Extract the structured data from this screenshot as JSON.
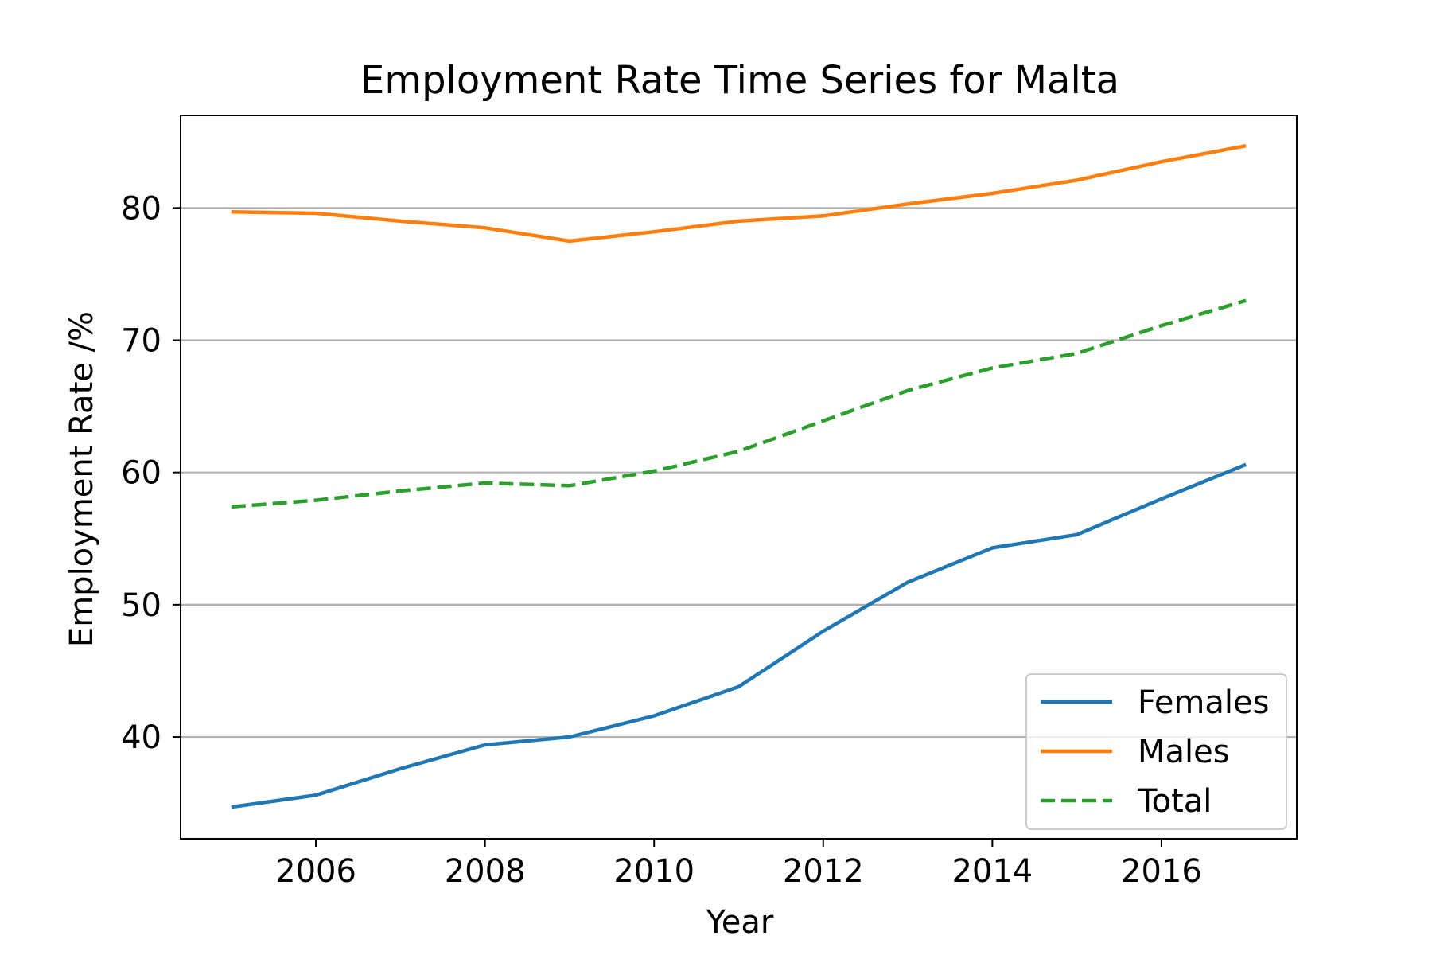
{
  "chart_data": {
    "type": "line",
    "title": "Employment Rate Time Series for Malta",
    "xlabel": "Year",
    "ylabel": "Employment Rate /%",
    "x": [
      2005,
      2006,
      2007,
      2008,
      2009,
      2010,
      2011,
      2012,
      2013,
      2014,
      2015,
      2016,
      2017
    ],
    "xlim": [
      2004.4,
      2017.6
    ],
    "ylim": [
      32.3,
      87.0
    ],
    "xticks": [
      2006,
      2008,
      2010,
      2012,
      2014,
      2016
    ],
    "yticks": [
      40,
      50,
      60,
      70,
      80
    ],
    "grid": "y",
    "legend_position": "lower-right",
    "series": [
      {
        "name": "Females",
        "color": "#1f77b4",
        "style": "solid",
        "values": [
          34.7,
          35.6,
          37.6,
          39.4,
          40.0,
          41.6,
          43.8,
          48.0,
          51.7,
          54.3,
          55.3,
          58.0,
          60.6
        ]
      },
      {
        "name": "Males",
        "color": "#ff7f0e",
        "style": "solid",
        "values": [
          79.7,
          79.6,
          79.0,
          78.5,
          77.5,
          78.2,
          79.0,
          79.4,
          80.3,
          81.1,
          82.1,
          83.5,
          84.7
        ]
      },
      {
        "name": "Total",
        "color": "#2ca02c",
        "style": "dashed",
        "values": [
          57.4,
          57.9,
          58.6,
          59.2,
          59.0,
          60.1,
          61.6,
          63.9,
          66.2,
          67.9,
          69.0,
          71.1,
          73.0
        ]
      }
    ]
  }
}
